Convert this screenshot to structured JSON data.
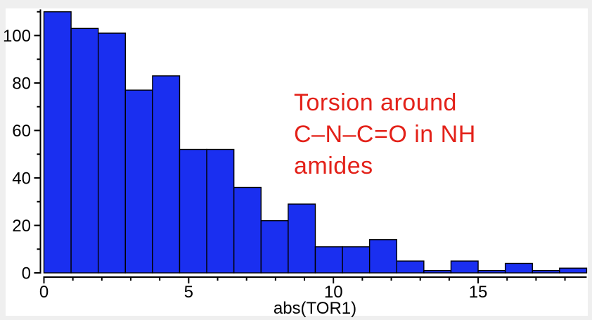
{
  "chart_data": {
    "type": "bar",
    "subtype": "histogram",
    "title": "",
    "xlabel": "abs(TOR1)",
    "ylabel": "",
    "bins": {
      "start": 0,
      "width": 0.9375
    },
    "counts": [
      110,
      103,
      101,
      77,
      83,
      52,
      52,
      36,
      22,
      29,
      11,
      11,
      14,
      5,
      1,
      5,
      1,
      4,
      1,
      2
    ],
    "xlim": [
      0,
      18.75
    ],
    "ylim": [
      0,
      111
    ],
    "x_major_ticks": [
      0,
      5,
      10,
      15
    ],
    "x_minor_step": 1,
    "y_major_ticks": [
      0,
      20,
      40,
      60,
      80,
      100
    ],
    "y_minor_step": 10,
    "grid": false,
    "legend": false,
    "bar_fill": "#1a2ff0",
    "bar_stroke": "#000000",
    "axis_color": "#000000",
    "tick_label_color": "#000000"
  },
  "annotation": {
    "lines": [
      "Torsion around",
      "C–N–C=O in NH",
      "amides"
    ],
    "color": "#e32119"
  },
  "colors": {
    "page_bg": "#efefef",
    "panel_bg": "#ffffff"
  }
}
